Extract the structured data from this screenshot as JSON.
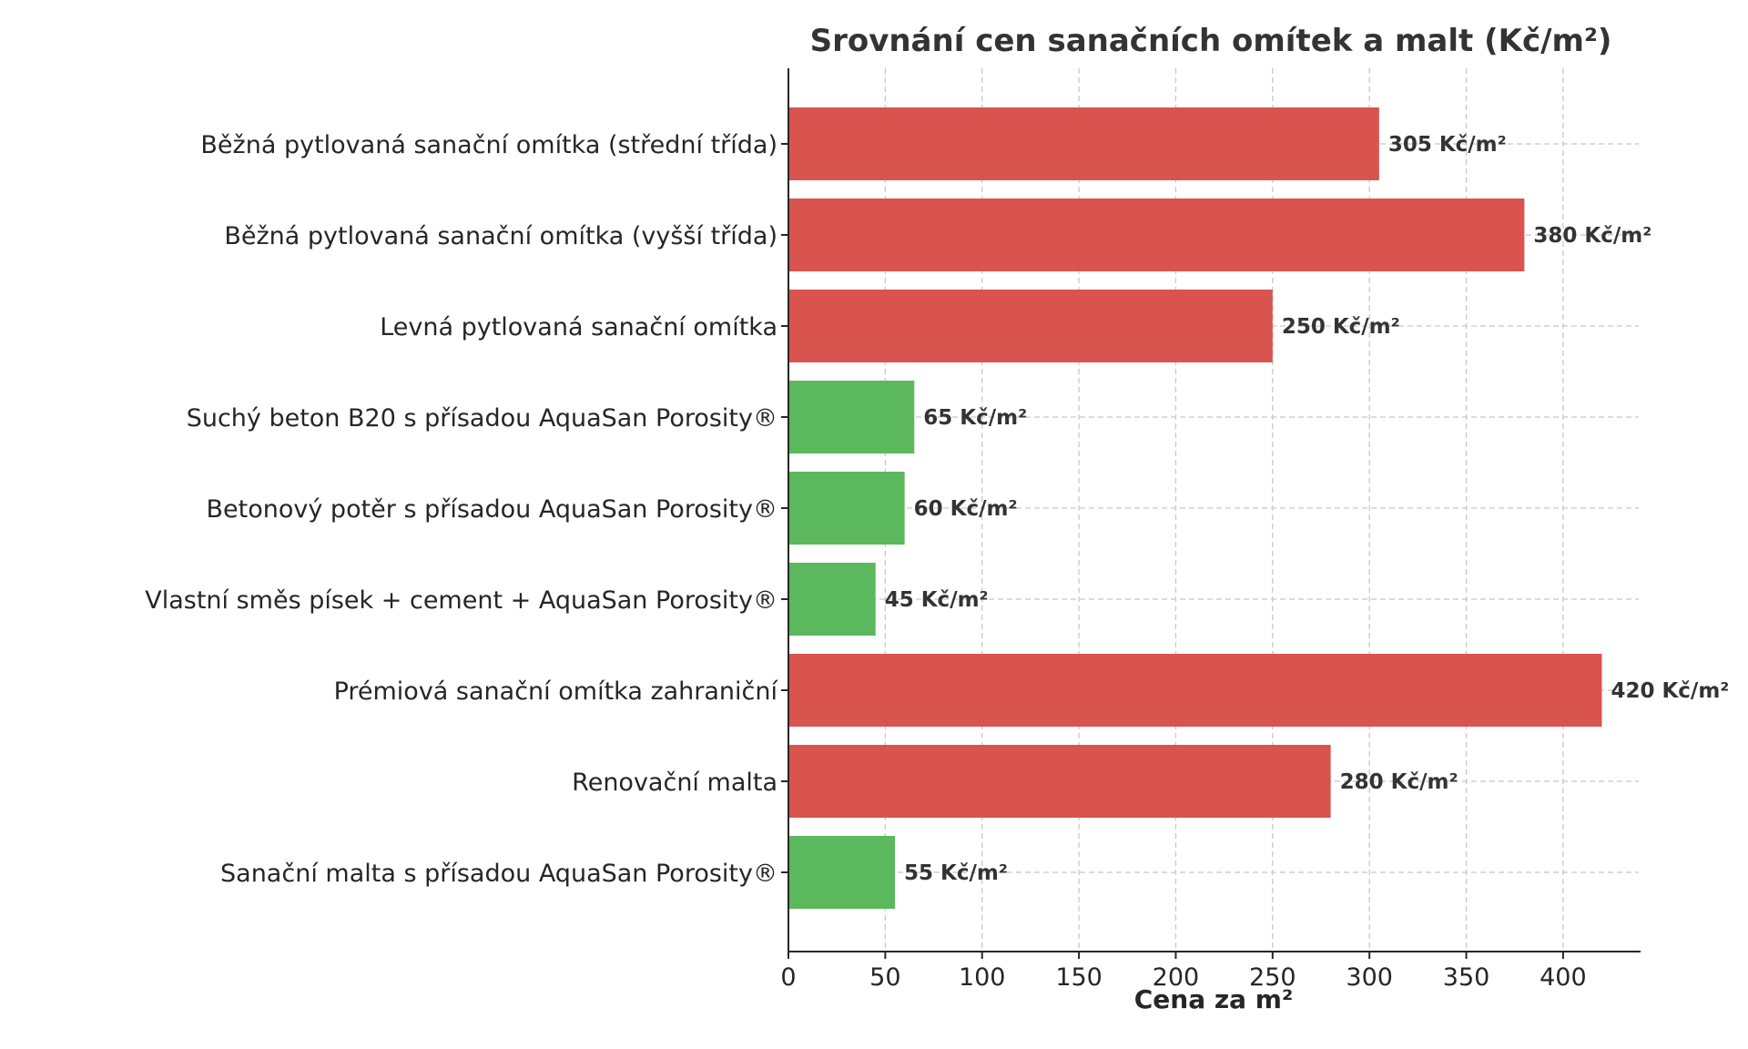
{
  "chart_data": {
    "type": "bar",
    "orientation": "horizontal",
    "title": "Srovnání cen sanačních omítek a malt (Kč/m²)",
    "xlabel": "Cena za m²",
    "ylabel": "",
    "xlim": [
      0,
      440
    ],
    "xticks": [
      0,
      50,
      100,
      150,
      200,
      250,
      300,
      350,
      400
    ],
    "grid": true,
    "value_suffix": " Kč/m²",
    "colors": {
      "red": "#d9534f",
      "green": "#5cb85c"
    },
    "categories": [
      "Běžná pytlovaná sanační omítka (střední třída)",
      "Běžná pytlovaná sanační omítka (vyšší třída)",
      "Levná pytlovaná sanační omítka",
      "Suchý beton B20 s přísadou AquaSan Porosity®",
      "Betonový potěr s přísadou AquaSan Porosity®",
      "Vlastní směs písek + cement + AquaSan Porosity®",
      "Prémiová sanační omítka zahraniční",
      "Renovační malta",
      "Sanační malta s přísadou AquaSan Porosity®"
    ],
    "values": [
      305,
      380,
      250,
      65,
      60,
      45,
      420,
      280,
      55
    ],
    "bar_colors": [
      "#d9534f",
      "#d9534f",
      "#d9534f",
      "#5cb85c",
      "#5cb85c",
      "#5cb85c",
      "#d9534f",
      "#d9534f",
      "#5cb85c"
    ],
    "value_labels": [
      "305 Kč/m²",
      "380 Kč/m²",
      "250 Kč/m²",
      "65 Kč/m²",
      "60 Kč/m²",
      "45 Kč/m²",
      "420 Kč/m²",
      "280 Kč/m²",
      "55 Kč/m²"
    ]
  }
}
